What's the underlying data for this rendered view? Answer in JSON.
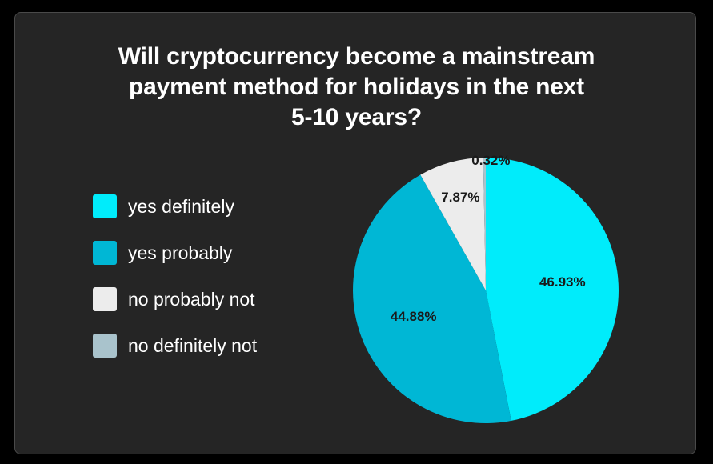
{
  "chart_data": {
    "type": "pie",
    "title_lines": [
      "Will cryptocurrency become a mainstream",
      "payment method for holidays in the next",
      "5-10 years?"
    ],
    "categories": [
      "yes definitely",
      "yes probably",
      "no probably not",
      "no definitely not"
    ],
    "values": [
      46.93,
      44.88,
      7.87,
      0.32
    ],
    "value_labels": [
      "46.93%",
      "44.88%",
      "7.87%",
      "0.32%"
    ],
    "colors": [
      "#00ecfb",
      "#00b7d5",
      "#ececec",
      "#a9c3cc"
    ],
    "legend_position": "left",
    "start_angle_deg": 0,
    "direction": "clockwise"
  }
}
